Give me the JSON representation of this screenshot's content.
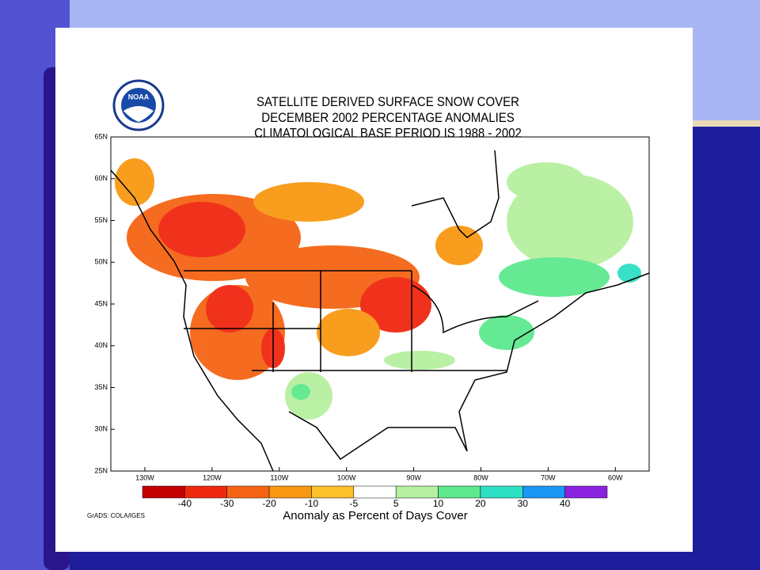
{
  "map": {
    "title_lines": [
      "SATELLITE DERIVED SURFACE SNOW COVER",
      "DECEMBER 2002 PERCENTAGE ANOMALIES",
      "CLIMATOLOGICAL BASE PERIOD IS 1988 - 2002"
    ],
    "logo": "NOAA",
    "lat_labels": [
      "65N",
      "60N",
      "55N",
      "50N",
      "45N",
      "40N",
      "35N",
      "30N",
      "25N"
    ],
    "lon_labels": [
      "130W",
      "120W",
      "110W",
      "100W",
      "90W",
      "80W",
      "70W",
      "60W"
    ],
    "colorbar": {
      "colors": [
        "#c40000",
        "#f02810",
        "#f56414",
        "#f89812",
        "#fbc02a",
        "#ffffff",
        "#b6f0a0",
        "#5ee88e",
        "#2ee0c4",
        "#1a96f4",
        "#8a22e0"
      ],
      "labels": [
        "-40",
        "-30",
        "-20",
        "-10",
        "-5",
        "5",
        "10",
        "20",
        "30",
        "40"
      ],
      "title": "Anomaly as Percent of Days Cover"
    },
    "credit": "GrADS: COLA/IGES"
  }
}
